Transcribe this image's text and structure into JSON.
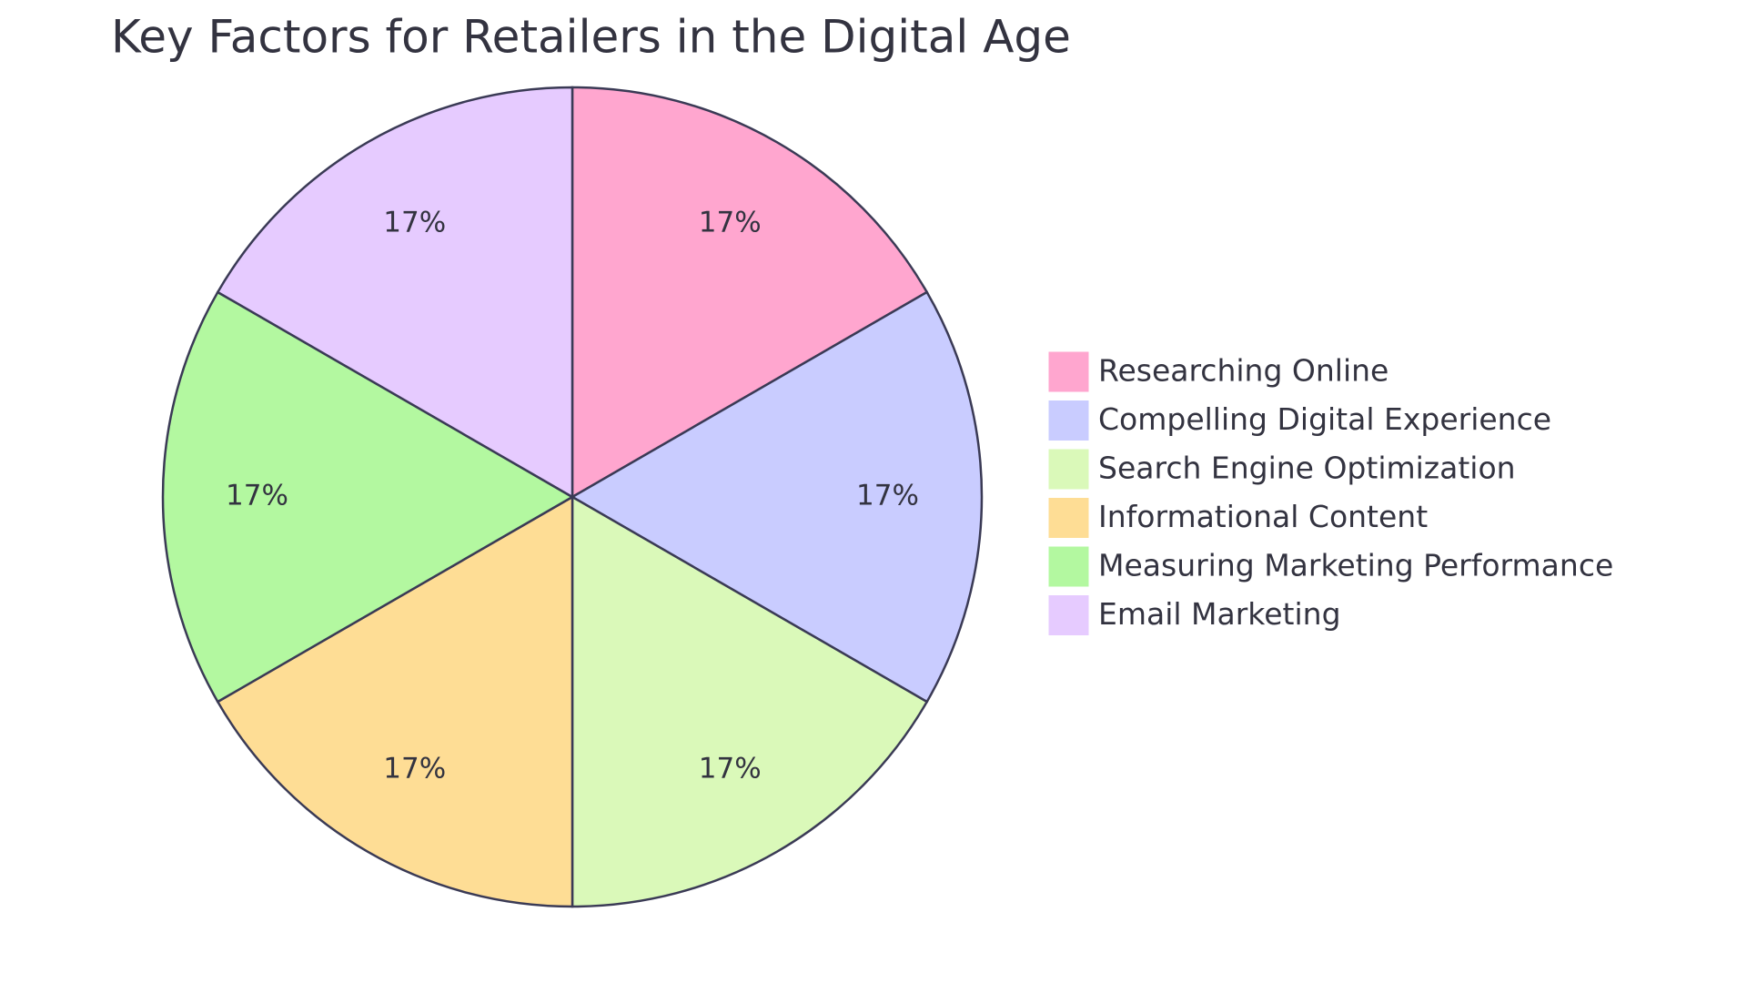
{
  "chart_data": {
    "type": "pie",
    "title": "Key Factors for Retailers in the Digital Age",
    "categories": [
      "Researching Online",
      "Compelling Digital Experience",
      "Search Engine Optimization",
      "Informational Content",
      "Measuring Marketing Performance",
      "Email Marketing"
    ],
    "values": [
      17,
      17,
      17,
      17,
      17,
      17
    ],
    "value_labels": [
      "17%",
      "17%",
      "17%",
      "17%",
      "17%",
      "17%"
    ],
    "colors": [
      "#FFA6CF",
      "#C9CCFF",
      "#DAF9B9",
      "#FEDD95",
      "#B3F8A0",
      "#E6CBFF"
    ]
  }
}
